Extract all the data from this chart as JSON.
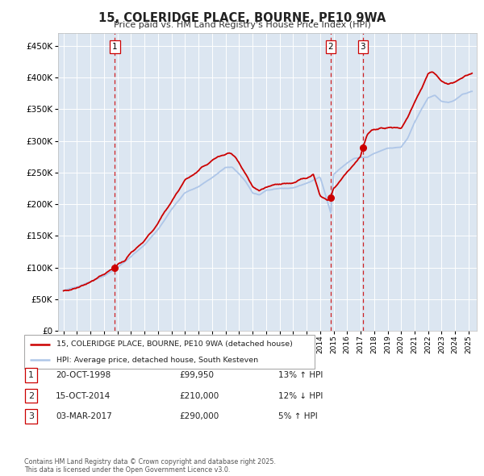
{
  "title": "15, COLERIDGE PLACE, BOURNE, PE10 9WA",
  "subtitle": "Price paid vs. HM Land Registry's House Price Index (HPI)",
  "ytick_values": [
    0,
    50000,
    100000,
    150000,
    200000,
    250000,
    300000,
    350000,
    400000,
    450000
  ],
  "ylim": [
    0,
    470000
  ],
  "xlim_start": 1994.6,
  "xlim_end": 2025.6,
  "background_color": "#dce6f1",
  "grid_color": "#ffffff",
  "hpi_color": "#aec6e8",
  "price_color": "#cc0000",
  "legend_label_price": "15, COLERIDGE PLACE, BOURNE, PE10 9WA (detached house)",
  "legend_label_hpi": "HPI: Average price, detached house, South Kesteven",
  "footer": "Contains HM Land Registry data © Crown copyright and database right 2025.\nThis data is licensed under the Open Government Licence v3.0.",
  "transactions": [
    {
      "id": 1,
      "date": 1998.8,
      "price": 99950,
      "table_date": "20-OCT-1998",
      "table_price": "£99,950",
      "table_hpi": "13% ↑ HPI"
    },
    {
      "id": 2,
      "date": 2014.79,
      "price": 210000,
      "table_date": "15-OCT-2014",
      "table_price": "£210,000",
      "table_hpi": "12% ↓ HPI"
    },
    {
      "id": 3,
      "date": 2017.17,
      "price": 290000,
      "table_date": "03-MAR-2017",
      "table_price": "£290,000",
      "table_hpi": "5% ↑ HPI"
    }
  ],
  "hpi_anchors_x": [
    1995,
    1996,
    1997,
    1998,
    1999,
    2000,
    2001,
    2002,
    2003,
    2004,
    2005,
    2006,
    2007,
    2007.5,
    2008,
    2008.5,
    2009,
    2009.5,
    2010,
    2011,
    2012,
    2013,
    2014,
    2014.79,
    2015,
    2016,
    2016.5,
    2017,
    2017.5,
    2018,
    2019,
    2020,
    2020.5,
    2021,
    2021.5,
    2022,
    2022.5,
    2023,
    2023.5,
    2024,
    2024.5,
    2025.25
  ],
  "hpi_anchors_y": [
    63000,
    70000,
    78000,
    87000,
    100000,
    117000,
    136000,
    160000,
    192000,
    218000,
    228000,
    242000,
    258000,
    258000,
    248000,
    235000,
    218000,
    215000,
    222000,
    224000,
    226000,
    233000,
    243000,
    187000,
    248000,
    265000,
    272000,
    274000,
    274000,
    280000,
    288000,
    290000,
    305000,
    330000,
    350000,
    368000,
    372000,
    362000,
    360000,
    365000,
    373000,
    378000
  ],
  "price_anchors_x": [
    1995,
    1995.5,
    1996,
    1997,
    1998,
    1998.8,
    1999,
    1999.5,
    2000,
    2001,
    2002,
    2003,
    2004,
    2005,
    2006,
    2007,
    2007.3,
    2007.6,
    2008,
    2008.5,
    2009,
    2009.5,
    2010,
    2011,
    2012,
    2013,
    2013.5,
    2014,
    2014.6,
    2014.79,
    2015,
    2015.5,
    2016,
    2016.5,
    2017,
    2017.17,
    2017.5,
    2018,
    2019,
    2020,
    2020.5,
    2021,
    2021.5,
    2022,
    2022.3,
    2022.6,
    2023,
    2023.5,
    2024,
    2024.3,
    2024.6,
    2025.25
  ],
  "price_anchors_y": [
    63000,
    65000,
    68000,
    78000,
    90000,
    99950,
    105000,
    110000,
    122000,
    142000,
    170000,
    205000,
    238000,
    253000,
    270000,
    278000,
    280000,
    276000,
    265000,
    248000,
    228000,
    222000,
    228000,
    232000,
    234000,
    242000,
    248000,
    215000,
    205000,
    210000,
    225000,
    238000,
    252000,
    263000,
    275000,
    290000,
    310000,
    318000,
    322000,
    320000,
    338000,
    362000,
    383000,
    405000,
    408000,
    405000,
    393000,
    390000,
    393000,
    397000,
    400000,
    407000
  ],
  "xtick_years": [
    1995,
    1996,
    1997,
    1998,
    1999,
    2000,
    2001,
    2002,
    2003,
    2004,
    2005,
    2006,
    2007,
    2008,
    2009,
    2010,
    2011,
    2012,
    2013,
    2014,
    2015,
    2016,
    2017,
    2018,
    2019,
    2020,
    2021,
    2022,
    2023,
    2024,
    2025
  ]
}
